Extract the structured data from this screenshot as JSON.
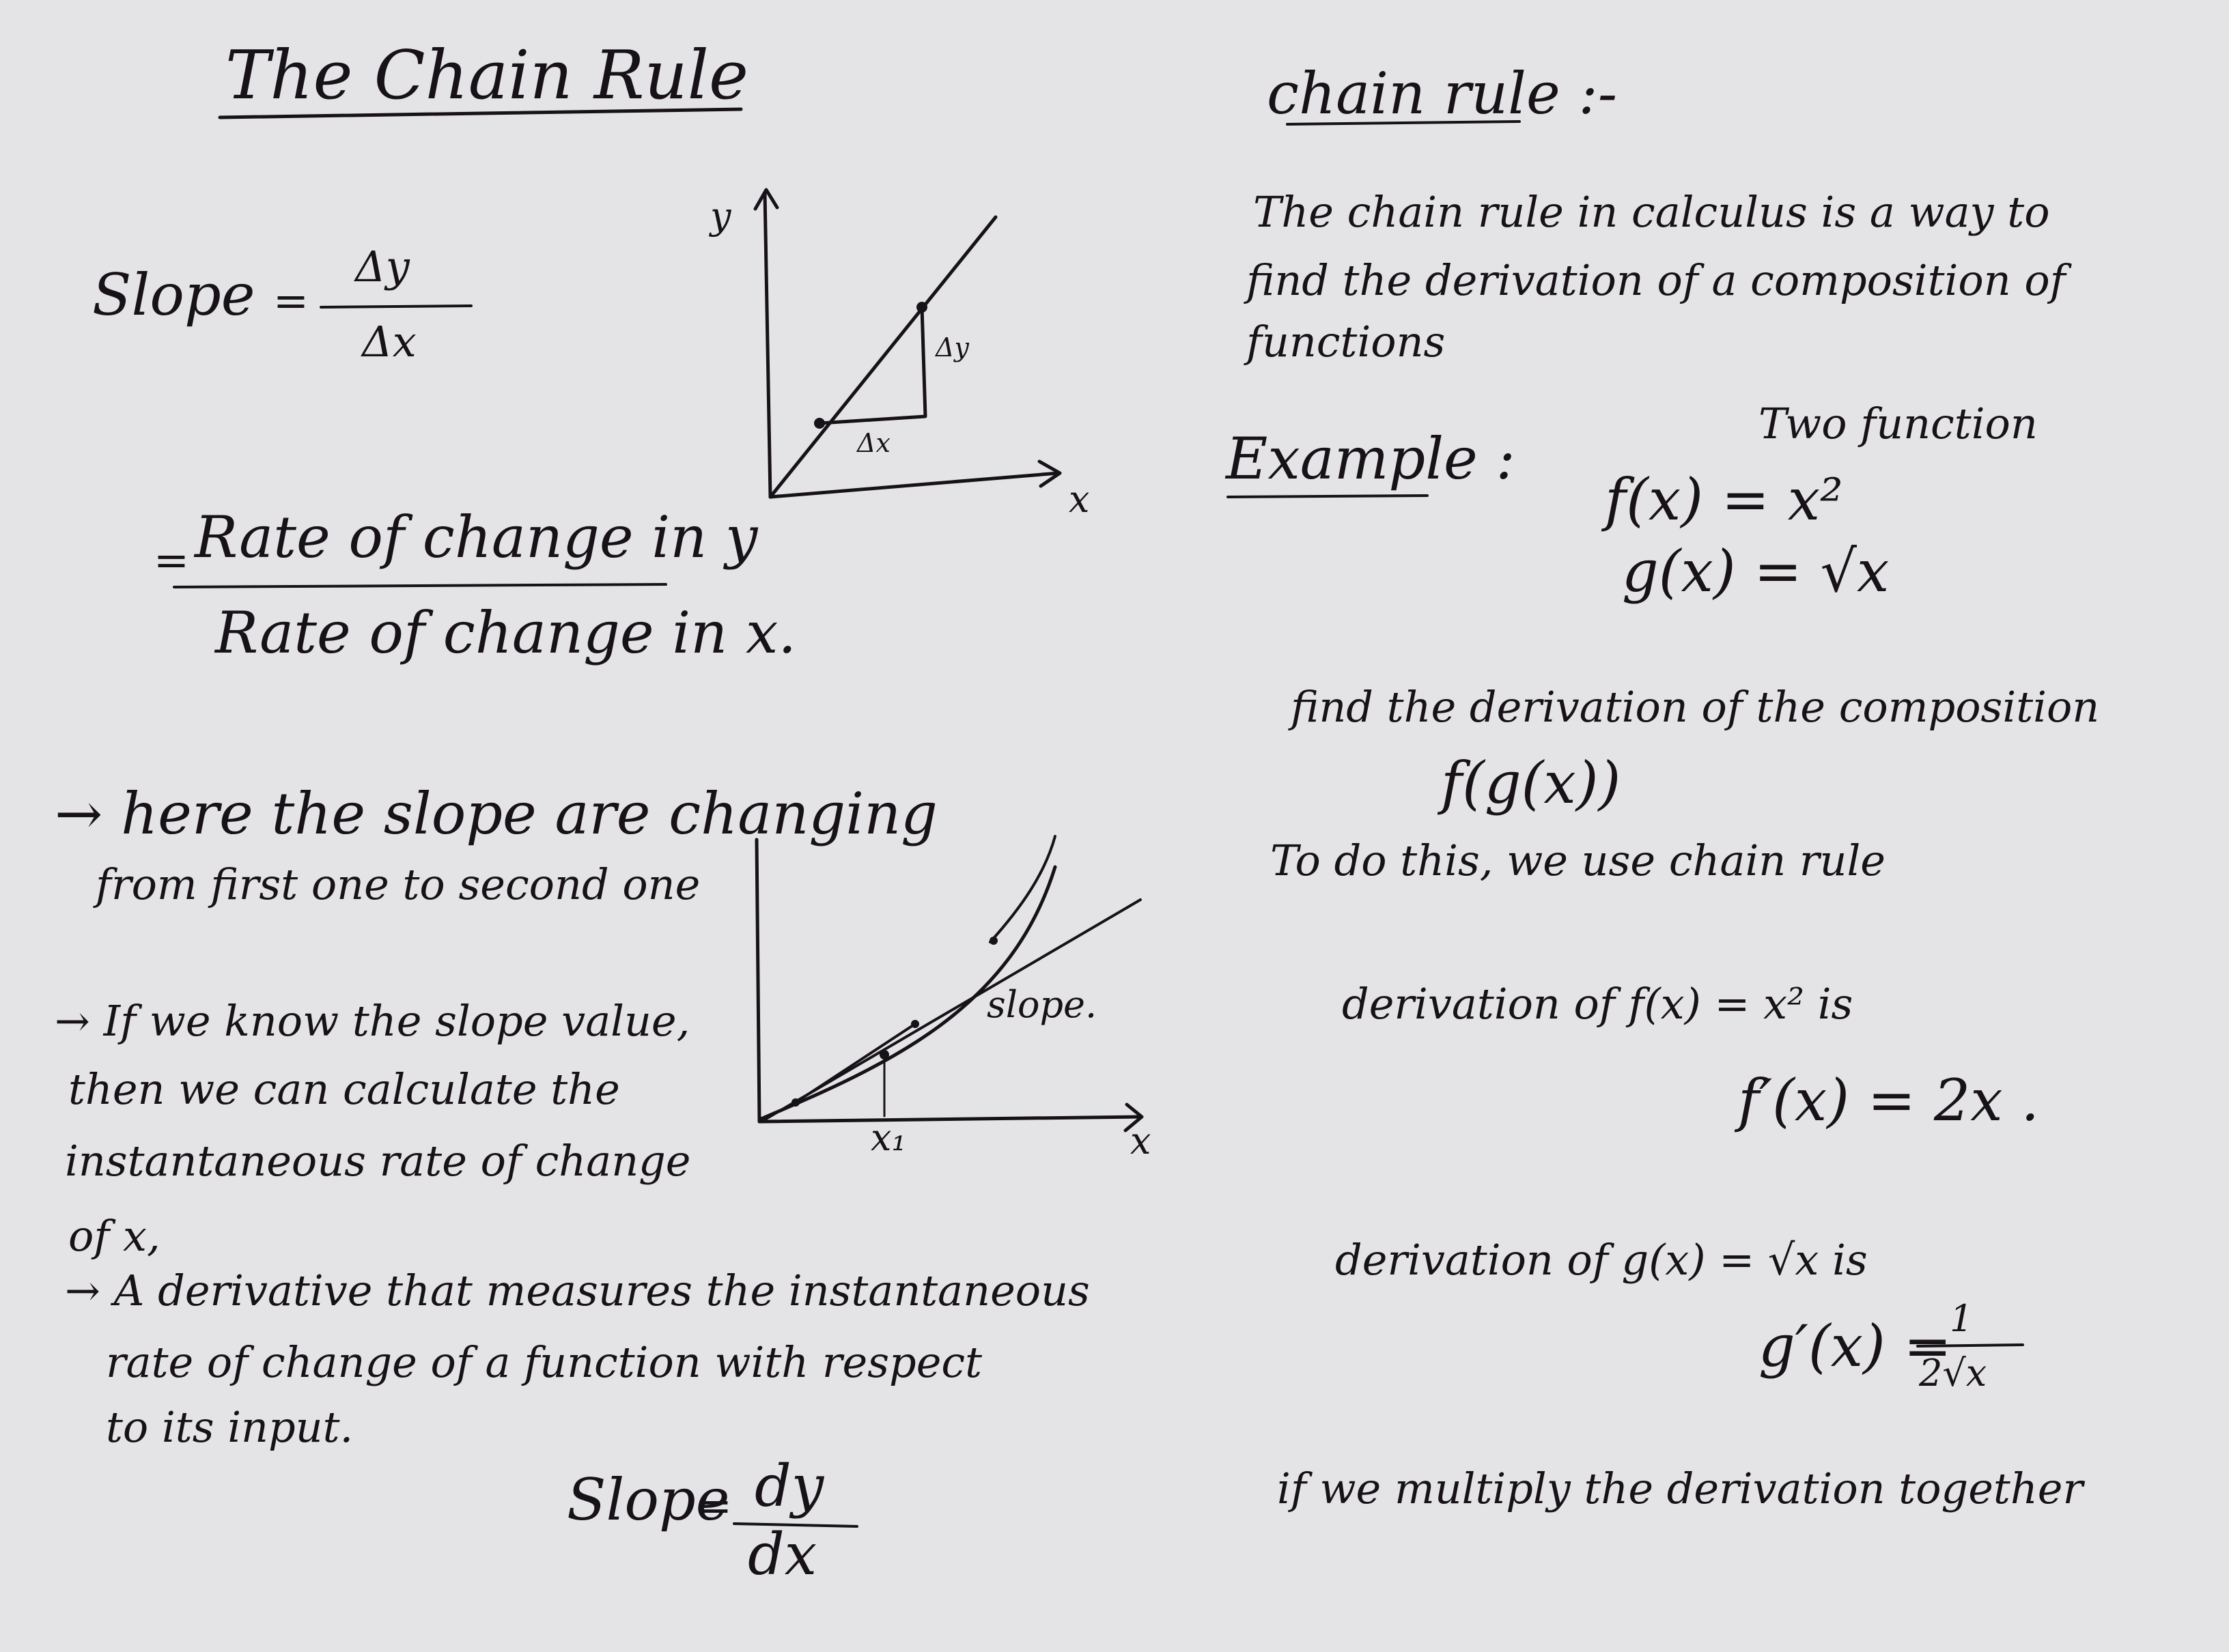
{
  "page_title": "The Chain Rule",
  "left": {
    "slope_label": "Slope",
    "slope_eq": "=",
    "delta_y": "Δy",
    "delta_x": "Δx",
    "rate_eq": "=",
    "rate_numerator": "Rate of change in y",
    "rate_denominator": "Rate of change in x.",
    "graph1": {
      "y_axis": "y",
      "x_axis": "x",
      "dy": "Δy",
      "dx": "Δx"
    },
    "note1_line1": "→ here the slope are changing",
    "note1_line2": "from first one to second one",
    "note2_line1": "→ If we know the slope value,",
    "note2_line2": "then we can calculate the",
    "note2_line3": "instantaneous rate of change",
    "note2_line4": "of x,",
    "graph2": {
      "slope_label": "slope.",
      "x1_label": "x₁",
      "x_axis": "x"
    },
    "note3_line1": "→ A derivative that measures the instantaneous",
    "note3_line2": "rate of change of a function with respect",
    "note3_line3": "to its input.",
    "slope2_label": "Slope",
    "slope2_eq": "=",
    "dy": "dy",
    "dx": "dx"
  },
  "right": {
    "heading": "chain rule :-",
    "def_line1": "The chain rule in calculus is a way to",
    "def_line2": "find the derivation of a composition of",
    "def_line3": "functions",
    "example_label": "Example :",
    "two_function": "Two function",
    "f_def": "f(x) = x²",
    "g_def": "g(x) = √x",
    "find_line": "find the derivation of the composition",
    "composition": "f(g(x))",
    "todo_line": "To do this, we use chain rule",
    "deriv_f_line": "derivation of f(x) = x² is",
    "f_prime": "f′(x) = 2x .",
    "deriv_g_line": "derivation of g(x) = √x is",
    "g_prime_lhs": "g′(x) =",
    "g_prime_num": "1",
    "g_prime_den": "2√x",
    "multiply_line": "if we multiply the derivation together"
  }
}
